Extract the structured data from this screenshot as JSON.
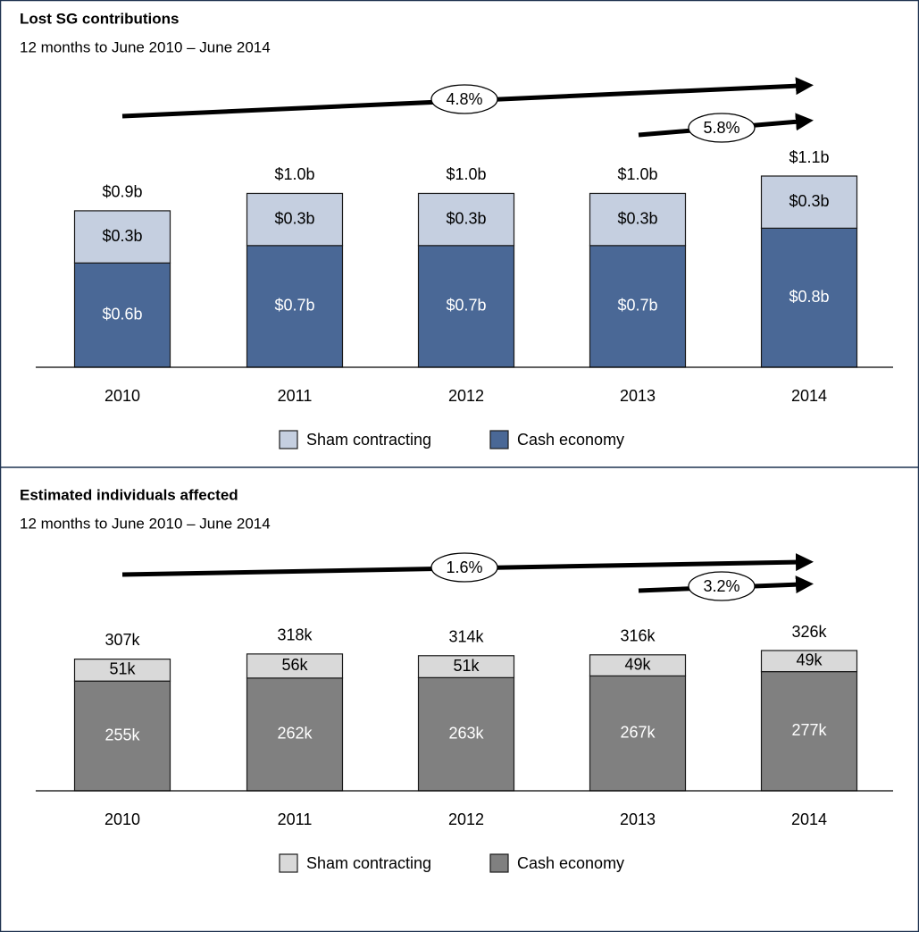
{
  "chart_data": [
    {
      "type": "bar",
      "stacked": true,
      "title": "Lost SG contributions",
      "subtitle": "12 months to June 2010 – June 2014",
      "categories": [
        "2010",
        "2011",
        "2012",
        "2013",
        "2014"
      ],
      "series": [
        {
          "name": "Cash economy",
          "color": "#4a6896",
          "values": [
            0.6,
            0.7,
            0.7,
            0.7,
            0.8
          ],
          "value_labels": [
            "$0.6b",
            "$0.7b",
            "$0.7b",
            "$0.7b",
            "$0.8b"
          ]
        },
        {
          "name": "Sham contracting",
          "color": "#c5cfe0",
          "values": [
            0.3,
            0.3,
            0.3,
            0.3,
            0.3
          ],
          "value_labels": [
            "$0.3b",
            "$0.3b",
            "$0.3b",
            "$0.3b",
            "$0.3b"
          ]
        }
      ],
      "totals": {
        "values": [
          0.9,
          1.0,
          1.0,
          1.0,
          1.1
        ],
        "value_labels": [
          "$0.9b",
          "$1.0b",
          "$1.0b",
          "$1.0b",
          "$1.1b"
        ]
      },
      "annotations": [
        {
          "label": "4.8%"
        },
        {
          "label": "5.8%"
        }
      ]
    },
    {
      "type": "bar",
      "stacked": true,
      "title": "Estimated individuals affected",
      "subtitle": "12 months to June 2010 – June 2014",
      "categories": [
        "2010",
        "2011",
        "2012",
        "2013",
        "2014"
      ],
      "series": [
        {
          "name": "Cash economy",
          "color": "#808080",
          "values": [
            255,
            262,
            263,
            267,
            277
          ],
          "value_labels": [
            "255k",
            "262k",
            "263k",
            "267k",
            "277k"
          ]
        },
        {
          "name": "Sham contracting",
          "color": "#d9d9d9",
          "values": [
            51,
            56,
            51,
            49,
            49
          ],
          "value_labels": [
            "51k",
            "56k",
            "51k",
            "49k",
            "49k"
          ]
        }
      ],
      "totals": {
        "values": [
          307,
          318,
          314,
          316,
          326
        ],
        "value_labels": [
          "307k",
          "318k",
          "314k",
          "316k",
          "326k"
        ]
      },
      "annotations": [
        {
          "label": "1.6%"
        },
        {
          "label": "3.2%"
        }
      ]
    }
  ]
}
